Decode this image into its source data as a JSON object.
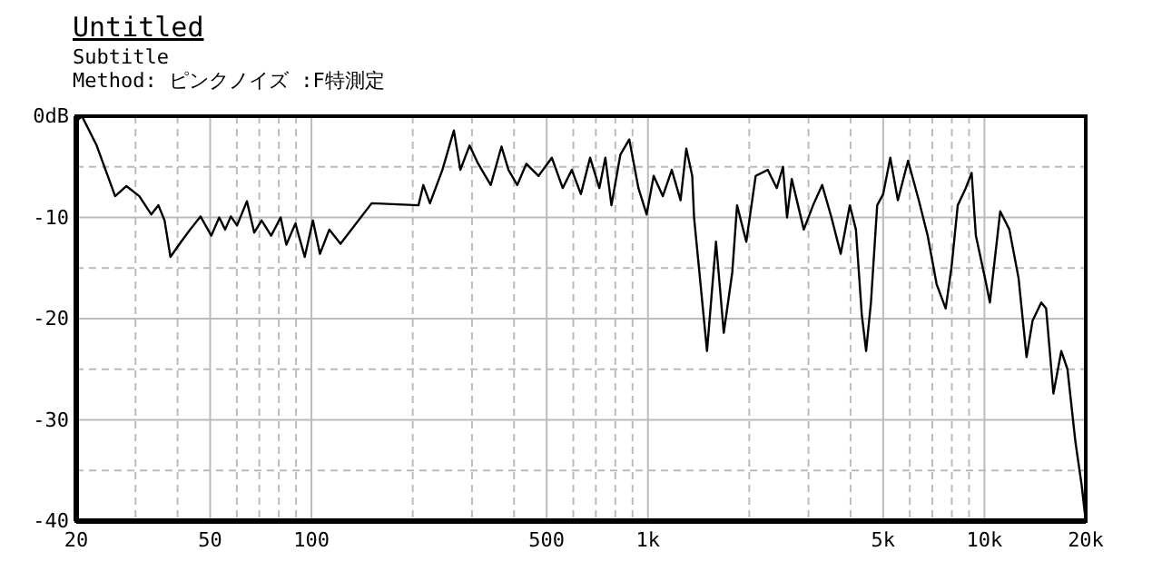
{
  "chart_data": {
    "type": "line",
    "title": "Untitled",
    "subtitle": "Subtitle",
    "annotations": [
      "Method:  ピンクノイズ  :F特測定"
    ],
    "log": "x",
    "grid": true,
    "marker": "none",
    "line_style": "solid",
    "xlim": [
      20,
      20000
    ],
    "ylim": [
      -40,
      0
    ],
    "xticks": [
      20,
      {
        "value": 30,
        "label": null
      },
      {
        "value": 40,
        "label": null
      },
      50,
      {
        "value": 60,
        "label": null
      },
      {
        "value": 70,
        "label": null
      },
      {
        "value": 80,
        "label": null
      },
      {
        "value": 90,
        "label": null
      },
      100,
      {
        "value": 200,
        "label": null
      },
      {
        "value": 300,
        "label": null
      },
      {
        "value": 400,
        "label": null
      },
      500,
      {
        "value": 600,
        "label": null
      },
      {
        "value": 700,
        "label": null
      },
      {
        "value": 800,
        "label": null
      },
      {
        "value": 900,
        "label": null
      },
      {
        "value": 1000,
        "label": "1k"
      },
      {
        "value": 2000,
        "label": null
      },
      {
        "value": 3000,
        "label": null
      },
      {
        "value": 4000,
        "label": null
      },
      {
        "value": 5000,
        "label": "5k"
      },
      {
        "value": 6000,
        "label": null
      },
      {
        "value": 7000,
        "label": null
      },
      {
        "value": 8000,
        "label": null
      },
      {
        "value": 9000,
        "label": null
      },
      {
        "value": 10000,
        "label": "10k"
      },
      {
        "value": 20000,
        "label": "20k"
      }
    ],
    "yticks": [
      {
        "value": 0,
        "label": "0dB"
      },
      {
        "value": -5,
        "label": null
      },
      -10,
      {
        "value": -15,
        "label": null
      },
      -20,
      {
        "value": -25,
        "label": null
      },
      -30,
      {
        "value": -35,
        "label": null
      },
      -40
    ],
    "series": [
      {
        "color": "#000000",
        "x": [
          20,
          20.8,
          23,
          26.1,
          28.2,
          30.8,
          33.4,
          35.1,
          36.6,
          38.1,
          41,
          43.6,
          46.8,
          50.4,
          53.2,
          55.4,
          57.6,
          60.1,
          64.3,
          67.6,
          71.1,
          75.9,
          81,
          84.2,
          89.6,
          95.5,
          101,
          106,
          113,
          122,
          151,
          208,
          215,
          225,
          245,
          265,
          277,
          295,
          313,
          341,
          367,
          385,
          409,
          435,
          473,
          518,
          558,
          594,
          632,
          673,
          717,
          747,
          779,
          828,
          880,
          937,
          991,
          1040,
          1107,
          1177,
          1250,
          1300,
          1354,
          1371,
          1498,
          1593,
          1680,
          1781,
          1840,
          1960,
          2090,
          2270,
          2415,
          2520,
          2590,
          2675,
          2905,
          3095,
          3295,
          3510,
          3740,
          3980,
          4150,
          4320,
          4450,
          4600,
          4800,
          5000,
          5250,
          5530,
          5930,
          6380,
          6780,
          7210,
          7670,
          7990,
          8330,
          8800,
          9160,
          9430,
          10040,
          10380,
          11140,
          11860,
          12630,
          13340,
          13900,
          14750,
          15250,
          16030,
          16920,
          17650,
          18640,
          19440,
          20000
        ],
        "values": [
          -0.5,
          0,
          -2.9,
          -7.9,
          -6.9,
          -7.9,
          -9.7,
          -8.8,
          -10.3,
          -13.9,
          -12.4,
          -11.2,
          -9.9,
          -11.8,
          -10,
          -11.2,
          -9.9,
          -10.8,
          -8.4,
          -11.5,
          -10.3,
          -11.8,
          -10,
          -12.7,
          -10.6,
          -13.9,
          -10.3,
          -13.6,
          -11.2,
          -12.6,
          -8.6,
          -8.8,
          -6.8,
          -8.6,
          -5.3,
          -1.4,
          -5.3,
          -2.9,
          -4.7,
          -6.8,
          -3,
          -5.3,
          -6.8,
          -4.7,
          -5.9,
          -4.1,
          -7.1,
          -5.3,
          -7.7,
          -4.1,
          -7.1,
          -4.1,
          -8.8,
          -3.8,
          -2.3,
          -7.1,
          -9.7,
          -5.9,
          -7.9,
          -5.3,
          -8.3,
          -3.2,
          -5.9,
          -10,
          -23.2,
          -12.4,
          -21.4,
          -15.4,
          -8.8,
          -12.4,
          -5.9,
          -5.3,
          -7.1,
          -5,
          -10,
          -6.2,
          -11.2,
          -8.8,
          -6.8,
          -10,
          -13.6,
          -8.8,
          -11.2,
          -19.6,
          -23.2,
          -18.4,
          -8.8,
          -7.7,
          -4.1,
          -8.3,
          -4.4,
          -8.3,
          -11.8,
          -16.6,
          -19,
          -14.8,
          -8.8,
          -7.1,
          -5.6,
          -11.8,
          -16,
          -18.4,
          -9.4,
          -11.2,
          -16,
          -23.8,
          -20.2,
          -18.4,
          -19,
          -27.4,
          -23.2,
          -25,
          -32.2,
          -36.4,
          -40
        ]
      }
    ]
  }
}
